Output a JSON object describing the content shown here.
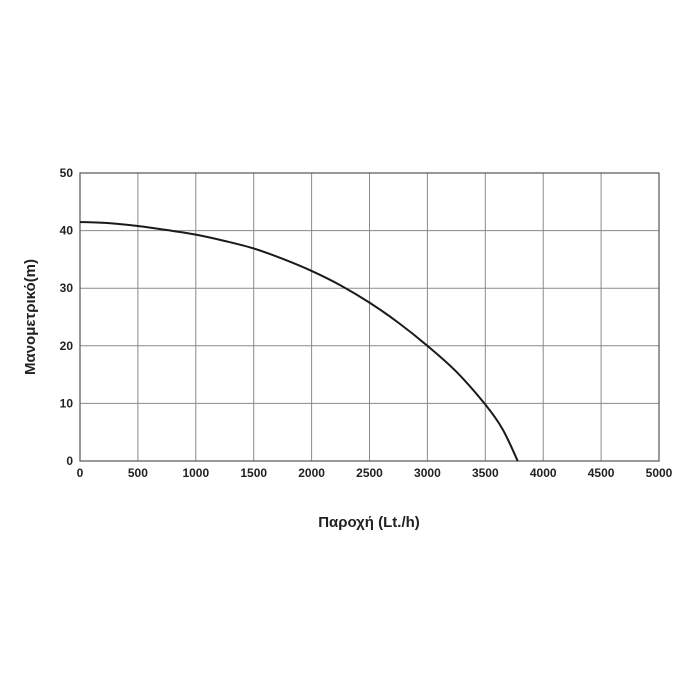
{
  "chart_data": {
    "type": "line",
    "xlabel": "Παροχή (Lt./h)",
    "ylabel": "Μανομετρικό(m)",
    "xlim": [
      0,
      5000
    ],
    "ylim": [
      0,
      50
    ],
    "x_ticks": [
      0,
      500,
      1000,
      1500,
      2000,
      2500,
      3000,
      3500,
      4000,
      4500,
      5000
    ],
    "y_ticks": [
      0,
      10,
      20,
      30,
      40,
      50
    ],
    "grid": true,
    "series": [
      {
        "x": [
          0,
          250,
          500,
          750,
          1000,
          1250,
          1500,
          1750,
          2000,
          2250,
          2500,
          2750,
          3000,
          3250,
          3500,
          3650,
          3780
        ],
        "y": [
          41.5,
          41.3,
          40.8,
          40.1,
          39.3,
          38.2,
          36.9,
          35.1,
          33.0,
          30.5,
          27.5,
          24.0,
          20.0,
          15.5,
          9.8,
          5.5,
          0
        ]
      }
    ],
    "line_color": "#1a1a1a",
    "grid_color": "#8a8a8a"
  }
}
